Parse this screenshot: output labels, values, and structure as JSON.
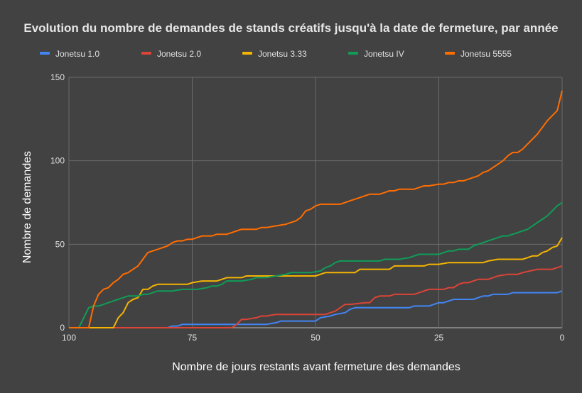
{
  "chart_data": {
    "type": "line",
    "title": "Evolution du nombre de demandes de stands créatifs jusqu'à la date de fermeture, par année",
    "xlabel": "Nombre de jours restants avant fermeture des demandes",
    "ylabel": "Nombre de demandes",
    "x_reversed": true,
    "xlim": [
      100,
      0
    ],
    "ylim": [
      0,
      150
    ],
    "x_ticks": [
      100,
      75,
      50,
      25,
      0
    ],
    "y_ticks": [
      0,
      50,
      100,
      150
    ],
    "grid": true,
    "legend_position": "top",
    "series": [
      {
        "name": "Jonetsu 1.0",
        "color": "#4285f4",
        "x": [
          100,
          80,
          79,
          78,
          77,
          60,
          58,
          57,
          50,
          49,
          47,
          46,
          44,
          43,
          42,
          40,
          35,
          31,
          30,
          27,
          26,
          25,
          24,
          23,
          22,
          21,
          20,
          18,
          17,
          16,
          15,
          14,
          13,
          11,
          10,
          9,
          8,
          5,
          1,
          0
        ],
        "y": [
          0,
          0,
          1,
          1,
          2,
          2,
          3,
          4,
          4,
          6,
          7,
          8,
          9,
          11,
          12,
          12,
          12,
          12,
          13,
          13,
          14,
          15,
          15,
          16,
          17,
          17,
          17,
          17,
          18,
          19,
          19,
          20,
          20,
          20,
          21,
          21,
          21,
          21,
          21,
          22
        ]
      },
      {
        "name": "Jonetsu 2.0",
        "color": "#db4437",
        "x": [
          100,
          67,
          66,
          65,
          64,
          62,
          61,
          60,
          58,
          57,
          48,
          47,
          46,
          45,
          44,
          43,
          40,
          39,
          38,
          37,
          36,
          35,
          34,
          32,
          31,
          30,
          29,
          28,
          27,
          25,
          24,
          23,
          22,
          21,
          20,
          19,
          18,
          17,
          16,
          15,
          14,
          13,
          11,
          10,
          9,
          8,
          5,
          2,
          1,
          0
        ],
        "y": [
          0,
          0,
          2,
          5,
          5,
          6,
          7,
          7,
          8,
          8,
          8,
          9,
          10,
          12,
          14,
          14,
          15,
          15,
          18,
          19,
          19,
          19,
          20,
          20,
          20,
          20,
          21,
          22,
          23,
          23,
          23,
          24,
          24,
          26,
          27,
          27,
          28,
          29,
          29,
          29,
          30,
          31,
          32,
          32,
          32,
          33,
          35,
          35,
          36,
          37
        ]
      },
      {
        "name": "Jonetsu 3.33",
        "color": "#f4b400",
        "x": [
          100,
          91,
          90,
          89,
          88,
          87,
          86,
          85,
          84,
          83,
          82,
          81,
          76,
          75,
          73,
          72,
          70,
          69,
          68,
          67,
          65,
          64,
          62,
          60,
          55,
          52,
          50,
          49,
          48,
          45,
          42,
          41,
          39,
          37,
          35,
          34,
          30,
          28,
          27,
          25,
          23,
          21,
          20,
          18,
          16,
          15,
          13,
          12,
          11,
          10,
          8,
          7,
          6,
          5,
          4,
          3,
          2,
          1,
          0
        ],
        "y": [
          0,
          0,
          6,
          9,
          15,
          17,
          18,
          23,
          23,
          25,
          26,
          26,
          26,
          27,
          28,
          28,
          28,
          29,
          30,
          30,
          30,
          31,
          31,
          31,
          31,
          31,
          31,
          32,
          33,
          33,
          33,
          35,
          35,
          35,
          35,
          37,
          37,
          37,
          38,
          38,
          39,
          39,
          39,
          39,
          39,
          40,
          41,
          41,
          41,
          41,
          41,
          42,
          43,
          43,
          45,
          46,
          48,
          49,
          54
        ]
      },
      {
        "name": "Jonetsu IV",
        "color": "#0f9d58",
        "x": [
          100,
          98,
          96,
          95,
          94,
          93,
          92,
          91,
          89,
          88,
          87,
          86,
          85,
          84,
          83,
          82,
          80,
          79,
          77,
          75,
          74,
          72,
          71,
          70,
          69,
          68,
          66,
          65,
          63,
          62,
          60,
          58,
          56,
          55,
          54,
          52,
          51,
          49,
          48,
          47,
          46,
          45,
          44,
          43,
          42,
          40,
          37,
          36,
          35,
          34,
          33,
          31,
          30,
          29,
          28,
          27,
          25,
          24,
          23,
          22,
          21,
          19,
          18,
          17,
          16,
          15,
          14,
          13,
          12,
          11,
          10,
          9,
          8,
          7,
          6,
          5,
          4,
          3,
          2,
          1,
          0
        ],
        "y": [
          0,
          0,
          12,
          13,
          13,
          14,
          15,
          16,
          18,
          19,
          19,
          19,
          20,
          20,
          21,
          22,
          22,
          22,
          23,
          23,
          23,
          24,
          25,
          25,
          26,
          28,
          28,
          28,
          29,
          30,
          30,
          31,
          32,
          33,
          33,
          33,
          33,
          34,
          36,
          37,
          39,
          40,
          40,
          40,
          40,
          40,
          40,
          41,
          41,
          41,
          41,
          42,
          43,
          44,
          44,
          44,
          44,
          45,
          46,
          46,
          47,
          47,
          49,
          50,
          51,
          52,
          53,
          54,
          55,
          55,
          56,
          57,
          58,
          59,
          61,
          63,
          65,
          67,
          70,
          73,
          75
        ]
      },
      {
        "name": "Jonetsu 5555",
        "color": "#ff6d01",
        "x": [
          100,
          96,
          95,
          94,
          93,
          92,
          91,
          90,
          89,
          88,
          87,
          86,
          85,
          84,
          83,
          82,
          81,
          80,
          79,
          78,
          77,
          76,
          75,
          74,
          73,
          72,
          71,
          70,
          68,
          67,
          66,
          65,
          62,
          61,
          60,
          58,
          56,
          55,
          54,
          53,
          52,
          51,
          50,
          49,
          48,
          47,
          45,
          43,
          42,
          41,
          40,
          39,
          38,
          37,
          36,
          35,
          34,
          33,
          32,
          31,
          30,
          29,
          28,
          27,
          25,
          24,
          23,
          22,
          21,
          20,
          19,
          18,
          17,
          16,
          15,
          14,
          13,
          12,
          11,
          10,
          9,
          8,
          7,
          6,
          5,
          4,
          3,
          2,
          1,
          0
        ],
        "y": [
          0,
          0,
          13,
          20,
          23,
          24,
          27,
          29,
          32,
          33,
          35,
          37,
          41,
          45,
          46,
          47,
          48,
          49,
          51,
          52,
          52,
          53,
          53,
          54,
          55,
          55,
          55,
          56,
          56,
          57,
          58,
          59,
          59,
          60,
          60,
          61,
          62,
          63,
          64,
          66,
          70,
          71,
          73,
          74,
          74,
          74,
          74,
          76,
          77,
          78,
          79,
          80,
          80,
          80,
          81,
          82,
          82,
          83,
          83,
          83,
          83,
          84,
          85,
          85,
          86,
          86,
          87,
          87,
          88,
          88,
          89,
          90,
          91,
          93,
          94,
          96,
          98,
          100,
          103,
          105,
          105,
          107,
          110,
          113,
          116,
          120,
          124,
          127,
          130,
          142
        ]
      }
    ]
  }
}
